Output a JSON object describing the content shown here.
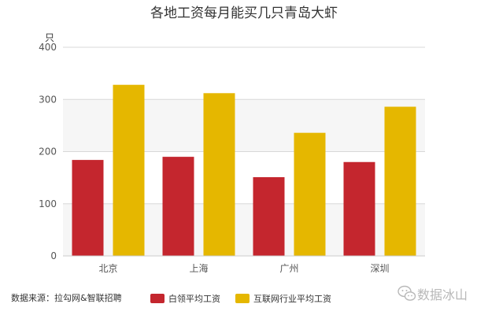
{
  "chart_data": {
    "type": "bar",
    "title": "各地工资每月能买几只青岛大虾",
    "ylabel": "只",
    "xlabel": "",
    "categories": [
      "北京",
      "上海",
      "广州",
      "深圳"
    ],
    "series": [
      {
        "name": "白领平均工资",
        "color": "#c4262e",
        "values": [
          184,
          190,
          151,
          180
        ]
      },
      {
        "name": "互联网行业平均工资",
        "color": "#e5b700",
        "values": [
          328,
          312,
          236,
          286
        ]
      }
    ],
    "ylim": [
      0,
      400
    ],
    "yticks": [
      0,
      100,
      200,
      300,
      400
    ],
    "grid": true,
    "plot_bands": "alternating light-gray",
    "legend_position": "bottom-center"
  },
  "source_note": "数据来源：拉勾网&智联招聘",
  "brand": {
    "text": "数据冰山",
    "icon": "wechat-icon"
  }
}
